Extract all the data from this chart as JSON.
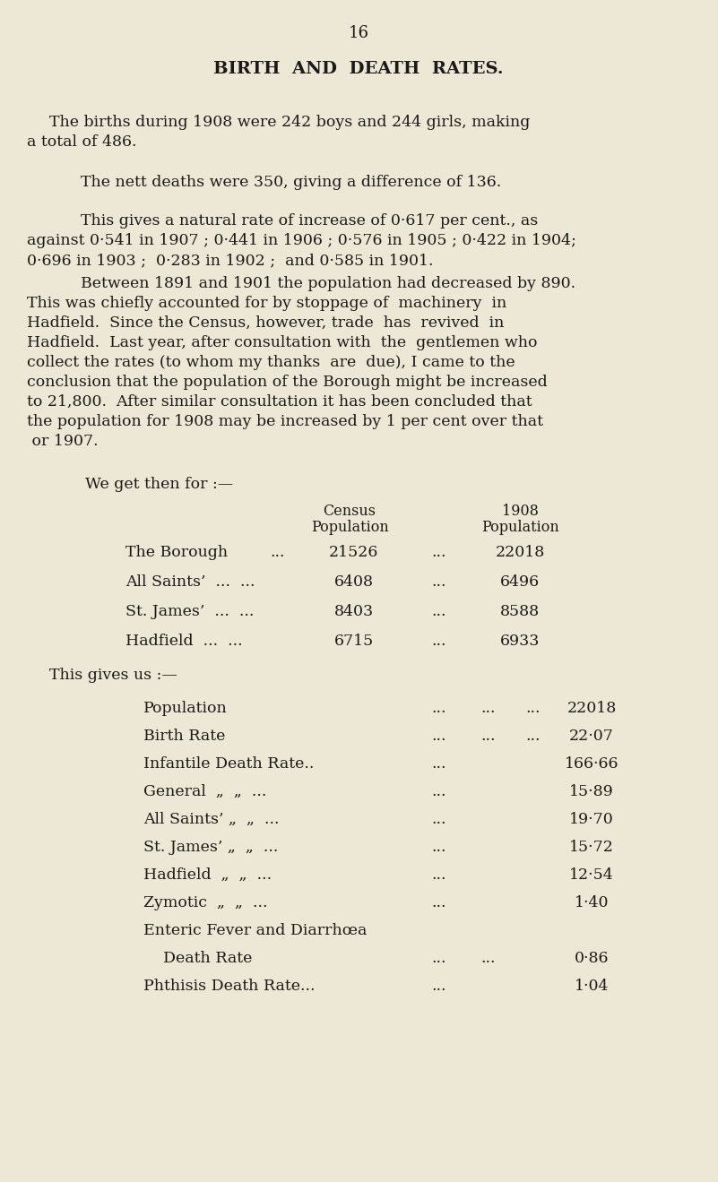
{
  "bg_color": "#ede8d5",
  "text_color": "#1a1a1a",
  "page_number": "16",
  "title": "BIRTH  AND  DEATH  RATES.",
  "para1": "The births during 1908 were 242 boys and 244 girls, making\na total of 486.",
  "para2": "The nett deaths were 350, giving a difference of 136.",
  "para3a": "This gives a natural rate of increase of 0·617 per cent., as",
  "para3b": "against 0·541 in 1907 ; 0·441 in 1906 ; 0·576 in 1905 ; 0·422 in 1904;",
  "para3c": "0·696 in 1903 ;  0·283 in 1902 ;  and 0·585 in 1901.",
  "para4a": "Between 1891 and 1901 the population had decreased by 890.",
  "para4b": "This was chiefly accounted for by stoppage of  machinery  in",
  "para4c": "Hadfield.  Since the Census, however, trade  has  revived  in",
  "para4d": "Hadfield.  Last year, after consultation with  thе  gentlemen who",
  "para4e": "collect the rates (to whom my thanks  are  due), I came to the",
  "para4f": "conclusion that the population of the Borough might be increased",
  "para4g": "to 21,800.  After similar consultation it has been concluded that",
  "para4h": "the population for 1908 may be increased by 1 per cent over that",
  "para4i": " or 1907.",
  "we_get": "We get then for :—",
  "census_pop": "Census\nPopulation",
  "pop_1908": "1908\nPopulation",
  "t1r1": [
    "The Borough",
    "...",
    "21526",
    "...",
    "22018"
  ],
  "t1r2": [
    "All Saints’  ...  ...",
    "6408",
    "...",
    "6496"
  ],
  "t1r3": [
    "St. James’  ...  ...",
    "8403",
    "...",
    "8588"
  ],
  "t1r4": [
    "Hadfield  ...  ...",
    "6715",
    "...",
    "6933"
  ],
  "this_gives": "This gives us :—",
  "t2_rows": [
    [
      "Population",
      "...",
      "...",
      "...",
      "22018"
    ],
    [
      "Birth Rate",
      "...",
      "...",
      "...",
      "22·07"
    ],
    [
      "Infantile Death Rate..",
      "...",
      "",
      "166·66"
    ],
    [
      "General  „  „  ...",
      "...",
      "",
      "15·89"
    ],
    [
      "All Saints’ „  „  ...",
      "...",
      "",
      "19·70"
    ],
    [
      "St. James’ „  „  ...",
      "...",
      "",
      "15·72"
    ],
    [
      "Hadfield  „  „  ...",
      "...",
      "",
      "12·54"
    ],
    [
      "Zymotic  „  „  ...",
      "...",
      "",
      "1·40"
    ],
    [
      "Enteric Fever and Diarrhœa",
      "",
      "",
      ""
    ],
    [
      "    Death Rate",
      "...",
      "...",
      "0·86"
    ],
    [
      "Phthisis Death Rate...",
      "...",
      "",
      "1·04"
    ]
  ]
}
